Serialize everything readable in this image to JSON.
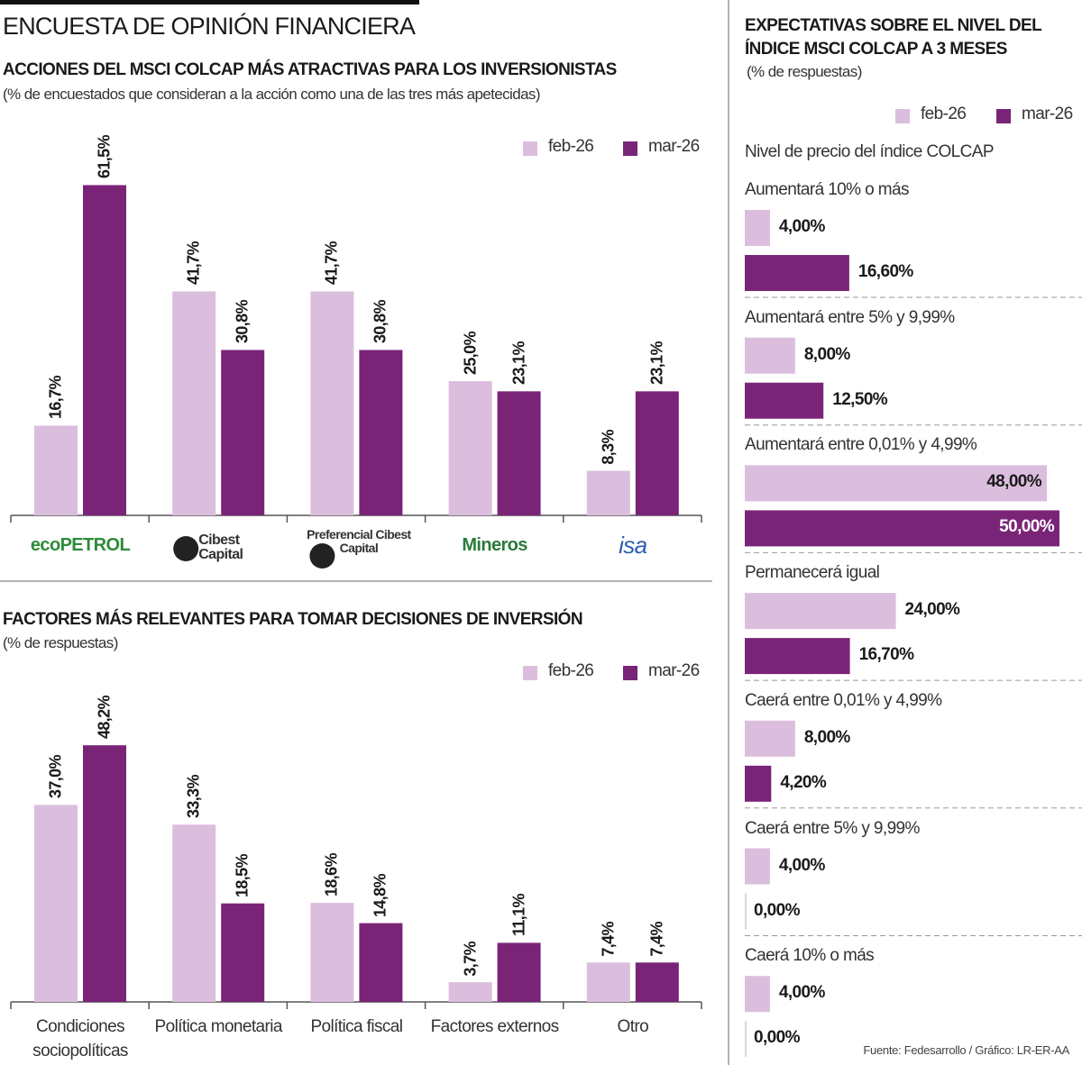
{
  "header": {
    "title": "ENCUESTA DE OPINIÓN FINANCIERA"
  },
  "chart_data": [
    {
      "type": "bar",
      "orientation": "vertical",
      "title": "ACCIONES DEL MSCI COLCAP MÁS ATRACTIVAS PARA LOS INVERSIONISTAS",
      "subtitle": "(% de encuestados que consideran a la acción como una de las tres más apetecidas)",
      "categories": [
        "ecoPETROL",
        "Cibest Capital",
        "Preferencial Cibest Capital",
        "Mineros",
        "isa"
      ],
      "series": [
        {
          "name": "feb-26",
          "color": "#dbbedd",
          "values": [
            16.7,
            41.7,
            41.7,
            25.0,
            8.3
          ],
          "value_labels": [
            "16,7%",
            "41,7%",
            "41,7%",
            "25,0%",
            "8,3%"
          ]
        },
        {
          "name": "mar-26",
          "color": "#7a2478",
          "values": [
            61.5,
            30.8,
            30.8,
            23.1,
            23.1
          ],
          "value_labels": [
            "61,5%",
            "30,8%",
            "30,8%",
            "23,1%",
            "23,1%"
          ]
        }
      ]
    },
    {
      "type": "bar",
      "orientation": "vertical",
      "title": "FACTORES MÁS RELEVANTES PARA TOMAR DECISIONES DE INVERSIÓN",
      "subtitle": "(% de respuestas)",
      "categories": [
        "Condiciones sociopolíticas",
        "Política monetaria",
        "Política fiscal",
        "Factores externos",
        "Otro"
      ],
      "series": [
        {
          "name": "feb-26",
          "color": "#dbbedd",
          "values": [
            37.0,
            33.3,
            18.6,
            3.7,
            7.4
          ],
          "value_labels": [
            "37,0%",
            "33,3%",
            "18,6%",
            "3,7%",
            "7,4%"
          ]
        },
        {
          "name": "mar-26",
          "color": "#7a2478",
          "values": [
            48.2,
            18.5,
            14.8,
            11.1,
            7.4
          ],
          "value_labels": [
            "48,2%",
            "18,5%",
            "14,8%",
            "11,1%",
            "7,4%"
          ]
        }
      ]
    },
    {
      "type": "bar",
      "orientation": "horizontal",
      "title": "EXPECTATIVAS SOBRE EL NIVEL DEL ÍNDICE MSCI COLCAP A 3 MESES",
      "subtitle": "(% de respuestas)",
      "category_title": "Nivel de precio del índice COLCAP",
      "categories": [
        "Aumentará 10% o más",
        "Aumentará entre 5% y 9,99%",
        "Aumentará entre 0,01% y 4,99%",
        "Permanecerá igual",
        "Caerá entre 0,01% y 4,99%",
        "Caerá entre 5% y 9,99%",
        "Caerá 10% o más"
      ],
      "series": [
        {
          "name": "feb-26",
          "color": "#dbbedd",
          "values": [
            4.0,
            8.0,
            48.0,
            24.0,
            8.0,
            4.0,
            4.0
          ],
          "value_labels": [
            "4,00%",
            "8,00%",
            "48,00%",
            "24,00%",
            "8,00%",
            "4,00%",
            "4,00%"
          ]
        },
        {
          "name": "mar-26",
          "color": "#7a2478",
          "values": [
            16.6,
            12.5,
            50.0,
            16.7,
            4.2,
            0.0,
            0.0
          ],
          "value_labels": [
            "16,60%",
            "12,50%",
            "50,00%",
            "16,70%",
            "4,20%",
            "0,00%",
            "0,00%"
          ]
        }
      ]
    }
  ],
  "footer": {
    "source": "Fuente: Fedesarrollo / Gráfico: LR-ER-AA"
  }
}
